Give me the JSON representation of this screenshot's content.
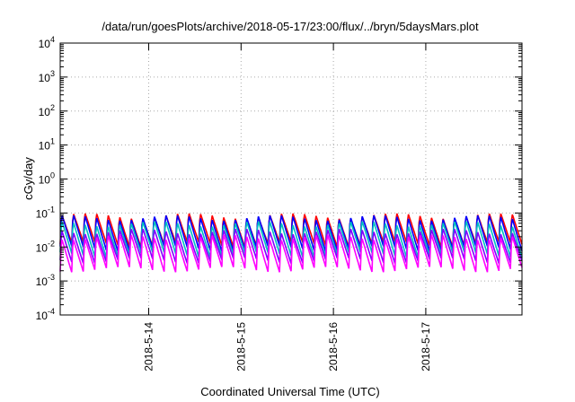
{
  "chart_data": {
    "type": "line",
    "title": "/data/run/goesPlots/archive/2018-05-17/23:00/flux/../bryn/5daysMars.plot",
    "xlabel": "Coordinated Universal Time (UTC)",
    "ylabel": "cGy/day",
    "yscale": "log",
    "ylim": [
      0.0001,
      10000
    ],
    "y_ticks": [
      {
        "base": "10",
        "exp": "4"
      },
      {
        "base": "10",
        "exp": "3"
      },
      {
        "base": "10",
        "exp": "2"
      },
      {
        "base": "10",
        "exp": "1"
      },
      {
        "base": "10",
        "exp": "0"
      },
      {
        "base": "10",
        "exp": "-1"
      },
      {
        "base": "10",
        "exp": "-2"
      },
      {
        "base": "10",
        "exp": "-3"
      },
      {
        "base": "10",
        "exp": "-4"
      }
    ],
    "xlim": [
      "2018-05-13T01:00",
      "2018-05-18T01:00"
    ],
    "x_ticks": [
      "2018-5-14",
      "2018-5-15",
      "2018-5-16",
      "2018-5-17"
    ],
    "grid": true,
    "pattern": {
      "period_hours": 3,
      "note_shape": "sawtooth: sharp rise then decay"
    },
    "series": [
      {
        "color": "#ff0000",
        "peak": 0.085,
        "trough": 0.012
      },
      {
        "color": "#0000ff",
        "peak": 0.075,
        "trough": 0.009
      },
      {
        "color": "#00c0c0",
        "peak": 0.05,
        "trough": 0.006
      },
      {
        "color": "#8000ff",
        "peak": 0.03,
        "trough": 0.004
      },
      {
        "color": "#ff00ff",
        "peak": 0.02,
        "trough": 0.0022
      }
    ]
  }
}
